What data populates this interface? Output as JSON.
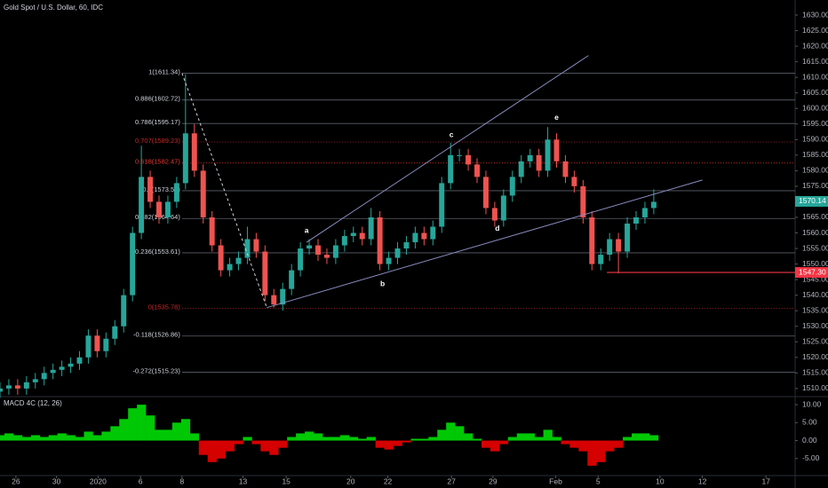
{
  "chart_data": {
    "type": "candlestick",
    "title": "Gold Spot / U.S. Dollar, 60, IDC",
    "xlim": [
      0,
      90
    ],
    "xticks": [
      {
        "value": 1.8,
        "label": "26"
      },
      {
        "value": 6.4,
        "label": "30"
      },
      {
        "value": 11.1,
        "label": "2020"
      },
      {
        "value": 15.9,
        "label": "6"
      },
      {
        "value": 20.6,
        "label": "8"
      },
      {
        "value": 27.5,
        "label": "13"
      },
      {
        "value": 32.4,
        "label": "15"
      },
      {
        "value": 39.7,
        "label": "20"
      },
      {
        "value": 43.9,
        "label": "22"
      },
      {
        "value": 51.1,
        "label": "27"
      },
      {
        "value": 55.8,
        "label": "29"
      },
      {
        "value": 62.9,
        "label": "Feb"
      },
      {
        "value": 67.7,
        "label": "5"
      },
      {
        "value": 74.7,
        "label": "10"
      },
      {
        "value": 79.5,
        "label": "12"
      },
      {
        "value": 86.7,
        "label": "17"
      }
    ],
    "ylim": [
      1507.4,
      1634.85
    ],
    "yticks": [
      {
        "value": 1510,
        "label": "1510.00"
      },
      {
        "value": 1515,
        "label": "1515.00"
      },
      {
        "value": 1520,
        "label": "1520.00"
      },
      {
        "value": 1525,
        "label": "1525.00"
      },
      {
        "value": 1530,
        "label": "1530.00"
      },
      {
        "value": 1535,
        "label": "1535.00"
      },
      {
        "value": 1540,
        "label": "1540.00"
      },
      {
        "value": 1545,
        "label": "1545.00"
      },
      {
        "value": 1550,
        "label": "1550.00"
      },
      {
        "value": 1555,
        "label": "1555.00"
      },
      {
        "value": 1560,
        "label": "1560.00"
      },
      {
        "value": 1565,
        "label": "1565.00"
      },
      {
        "value": 1570,
        "label": "1570.00"
      },
      {
        "value": 1575,
        "label": "1575.00"
      },
      {
        "value": 1580,
        "label": "1580.00"
      },
      {
        "value": 1585,
        "label": "1585.00"
      },
      {
        "value": 1590,
        "label": "1590.00"
      },
      {
        "value": 1595,
        "label": "1595.00"
      },
      {
        "value": 1600,
        "label": "1600.00"
      },
      {
        "value": 1605,
        "label": "1605.00"
      },
      {
        "value": 1610,
        "label": "1610.00"
      },
      {
        "value": 1615,
        "label": "1615.00"
      },
      {
        "value": 1620,
        "label": "1620.00"
      },
      {
        "value": 1625,
        "label": "1625.00"
      },
      {
        "value": 1630,
        "label": "1630.00"
      }
    ],
    "up_color": "#26a69a",
    "down_color": "#ef5350",
    "candles": {
      "open": [
        1509,
        1510,
        1511,
        1510,
        1512,
        1513,
        1515,
        1516,
        1517,
        1518,
        1520,
        1527,
        1522,
        1526,
        1530,
        1540,
        1560,
        1578,
        1570,
        1565,
        1570,
        1576,
        1592,
        1580,
        1565,
        1556,
        1548,
        1550,
        1552,
        1558,
        1554,
        1540,
        1537,
        1542,
        1548,
        1555,
        1556,
        1553,
        1552,
        1556,
        1559,
        1560,
        1558,
        1565,
        1550,
        1552,
        1555,
        1557,
        1560,
        1558,
        1562,
        1576,
        1585,
        1585,
        1582,
        1578,
        1568,
        1564,
        1572,
        1578,
        1583,
        1585,
        1580,
        1590,
        1583,
        1578,
        1575,
        1565,
        1550,
        1553,
        1558,
        1554,
        1563,
        1565,
        1568
      ],
      "high": [
        1512,
        1513,
        1513,
        1514,
        1515,
        1517,
        1518,
        1519,
        1520,
        1522,
        1529,
        1529,
        1528,
        1532,
        1542,
        1562,
        1588,
        1580,
        1572,
        1572,
        1578,
        1611,
        1595,
        1582,
        1567,
        1558,
        1552,
        1554,
        1562,
        1560,
        1556,
        1542,
        1544,
        1550,
        1557,
        1558,
        1558,
        1555,
        1558,
        1561,
        1562,
        1562,
        1568,
        1567,
        1554,
        1557,
        1559,
        1562,
        1562,
        1564,
        1578,
        1589,
        1587,
        1587,
        1584,
        1580,
        1570,
        1574,
        1580,
        1585,
        1587,
        1587,
        1594,
        1592,
        1585,
        1580,
        1577,
        1567,
        1555,
        1560,
        1560,
        1565,
        1567,
        1570,
        1574
      ],
      "low": [
        1507,
        1508,
        1508,
        1508,
        1510,
        1511,
        1513,
        1514,
        1515,
        1516,
        1518,
        1520,
        1520,
        1524,
        1528,
        1538,
        1558,
        1568,
        1563,
        1563,
        1568,
        1574,
        1578,
        1563,
        1554,
        1546,
        1546,
        1548,
        1550,
        1552,
        1538,
        1536,
        1535,
        1540,
        1546,
        1553,
        1551,
        1550,
        1550,
        1554,
        1557,
        1556,
        1556,
        1548,
        1548,
        1550,
        1553,
        1555,
        1556,
        1556,
        1560,
        1574,
        1583,
        1580,
        1576,
        1566,
        1562,
        1562,
        1570,
        1576,
        1581,
        1578,
        1578,
        1581,
        1576,
        1573,
        1563,
        1548,
        1548,
        1551,
        1547,
        1552,
        1561,
        1563,
        1566
      ],
      "close": [
        1510,
        1511,
        1510,
        1512,
        1513,
        1515,
        1516,
        1517,
        1518,
        1520,
        1527,
        1522,
        1526,
        1530,
        1540,
        1560,
        1578,
        1570,
        1565,
        1570,
        1576,
        1592,
        1580,
        1565,
        1556,
        1548,
        1550,
        1552,
        1558,
        1554,
        1540,
        1537,
        1542,
        1548,
        1555,
        1556,
        1553,
        1552,
        1556,
        1559,
        1560,
        1558,
        1565,
        1550,
        1552,
        1555,
        1557,
        1560,
        1558,
        1562,
        1576,
        1585,
        1585,
        1582,
        1578,
        1568,
        1564,
        1572,
        1578,
        1583,
        1585,
        1580,
        1590,
        1583,
        1578,
        1575,
        1565,
        1550,
        1553,
        1558,
        1554,
        1563,
        1565,
        1568,
        1570
      ]
    },
    "fib_start_x": 20.6,
    "fib_levels": [
      {
        "label": "1(1611.34)",
        "value": 1611.34,
        "color": "#d1d4dc"
      },
      {
        "label": "0.886(1602.72)",
        "value": 1602.72,
        "color": "#d1d4dc"
      },
      {
        "label": "0.786(1595.17)",
        "value": 1595.17,
        "color": "#d1d4dc"
      },
      {
        "label": "0.707(1589.23)",
        "value": 1589.23,
        "color": "#c62828"
      },
      {
        "label": "0.618(1582.47)",
        "value": 1582.47,
        "color": "#e53935"
      },
      {
        "label": "0.5(1573.56)",
        "value": 1573.56,
        "color": "#d1d4dc"
      },
      {
        "label": "0.382(1564.64)",
        "value": 1564.64,
        "color": "#d1d4dc"
      },
      {
        "label": "0.236(1553.61)",
        "value": 1553.61,
        "color": "#d1d4dc"
      },
      {
        "label": "0(1535.78)",
        "value": 1535.78,
        "color": "#c62828"
      },
      {
        "label": "-0.118(1526.86)",
        "value": 1526.86,
        "color": "#d1d4dc"
      },
      {
        "label": "-0.272(1515.23)",
        "value": 1515.23,
        "color": "#d1d4dc"
      }
    ],
    "trendlines": [
      {
        "x": [
          30.2,
          79.5
        ],
        "y": [
          1536,
          1577
        ],
        "color": "#8c8fc4",
        "dashed": false
      },
      {
        "x": [
          34.7,
          66.6
        ],
        "y": [
          1557,
          1617
        ],
        "color": "#8c8fc4",
        "dashed": false
      },
      {
        "x": [
          20.6,
          30.2
        ],
        "y": [
          1611.34,
          1536
        ],
        "color": "#d1d4dc",
        "dashed": true
      }
    ],
    "wave_labels": [
      {
        "label": "a",
        "x": 34.7,
        "y": 1560.7
      },
      {
        "label": "b",
        "x": 43.3,
        "y": 1543.6
      },
      {
        "label": "c",
        "x": 51.1,
        "y": 1591.5
      },
      {
        "label": "d",
        "x": 56.3,
        "y": 1561.3
      },
      {
        "label": "e",
        "x": 63.0,
        "y": 1597
      }
    ],
    "price_markers": [
      {
        "label": "1570.14",
        "value": 1570.14,
        "color": "#26a69a"
      },
      {
        "label": "1547.30",
        "value": 1547.3,
        "color": "#f23645",
        "line_from_x": 68.7
      }
    ],
    "indicator": {
      "type": "histogram",
      "title": "MACD 4C (12, 26)",
      "ylim": [
        -9.75,
        12
      ],
      "yticks": [
        {
          "value": 10,
          "label": "10.00"
        },
        {
          "value": 5,
          "label": "5.00"
        },
        {
          "value": 0,
          "label": "0.00"
        },
        {
          "value": -5,
          "label": "-5.00"
        }
      ],
      "values": [
        1.5,
        2,
        1.5,
        1,
        1.5,
        1,
        1.5,
        2,
        1.5,
        1,
        2.5,
        1.5,
        2.5,
        4,
        6,
        9,
        10,
        7,
        3,
        3,
        5,
        6,
        2,
        -4,
        -6,
        -5,
        -3,
        -1,
        1,
        -1,
        -3,
        -4,
        -2,
        1,
        2,
        2.5,
        2,
        1,
        1,
        1.5,
        1,
        0.5,
        1,
        -2,
        -2.5,
        -1.5,
        -0.5,
        0.5,
        0.5,
        1,
        3,
        5,
        4,
        2,
        0.5,
        -2,
        -3,
        -1,
        1,
        2,
        2,
        1,
        3,
        1,
        -1,
        -2,
        -3,
        -7,
        -6,
        -3,
        -2,
        1,
        2,
        2,
        1.5
      ],
      "pos_color": "#00c805",
      "neg_color": "#d50000"
    }
  }
}
